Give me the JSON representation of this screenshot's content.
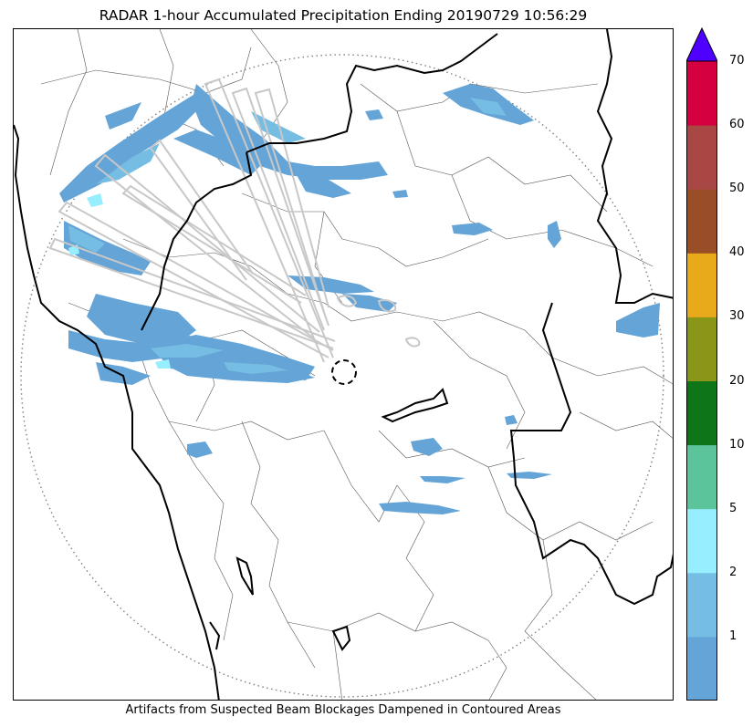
{
  "title": "RADAR 1-hour Accumulated Precipitation Ending 20190729 10:56:29",
  "caption": "Artifacts from Suspected Beam Blockages Dampened in Contoured Areas",
  "colorbar": {
    "ticks": [
      "1",
      "2",
      "5",
      "10",
      "20",
      "30",
      "40",
      "50",
      "60",
      "70"
    ],
    "colors": [
      "#65a4d6",
      "#76bde3",
      "#96eefe",
      "#5cc49a",
      "#0e7519",
      "#8a9617",
      "#e8a91b",
      "#9a4e27",
      "#a94744",
      "#d40040"
    ],
    "extend_color": "#5000ff"
  },
  "map": {
    "rain_color": "#65a4d6",
    "rain_light_color": "#76bde3",
    "rain_core_color": "#96eefe",
    "range_ring": "dotted",
    "blockage_outline_color": "#c8c8c8"
  }
}
